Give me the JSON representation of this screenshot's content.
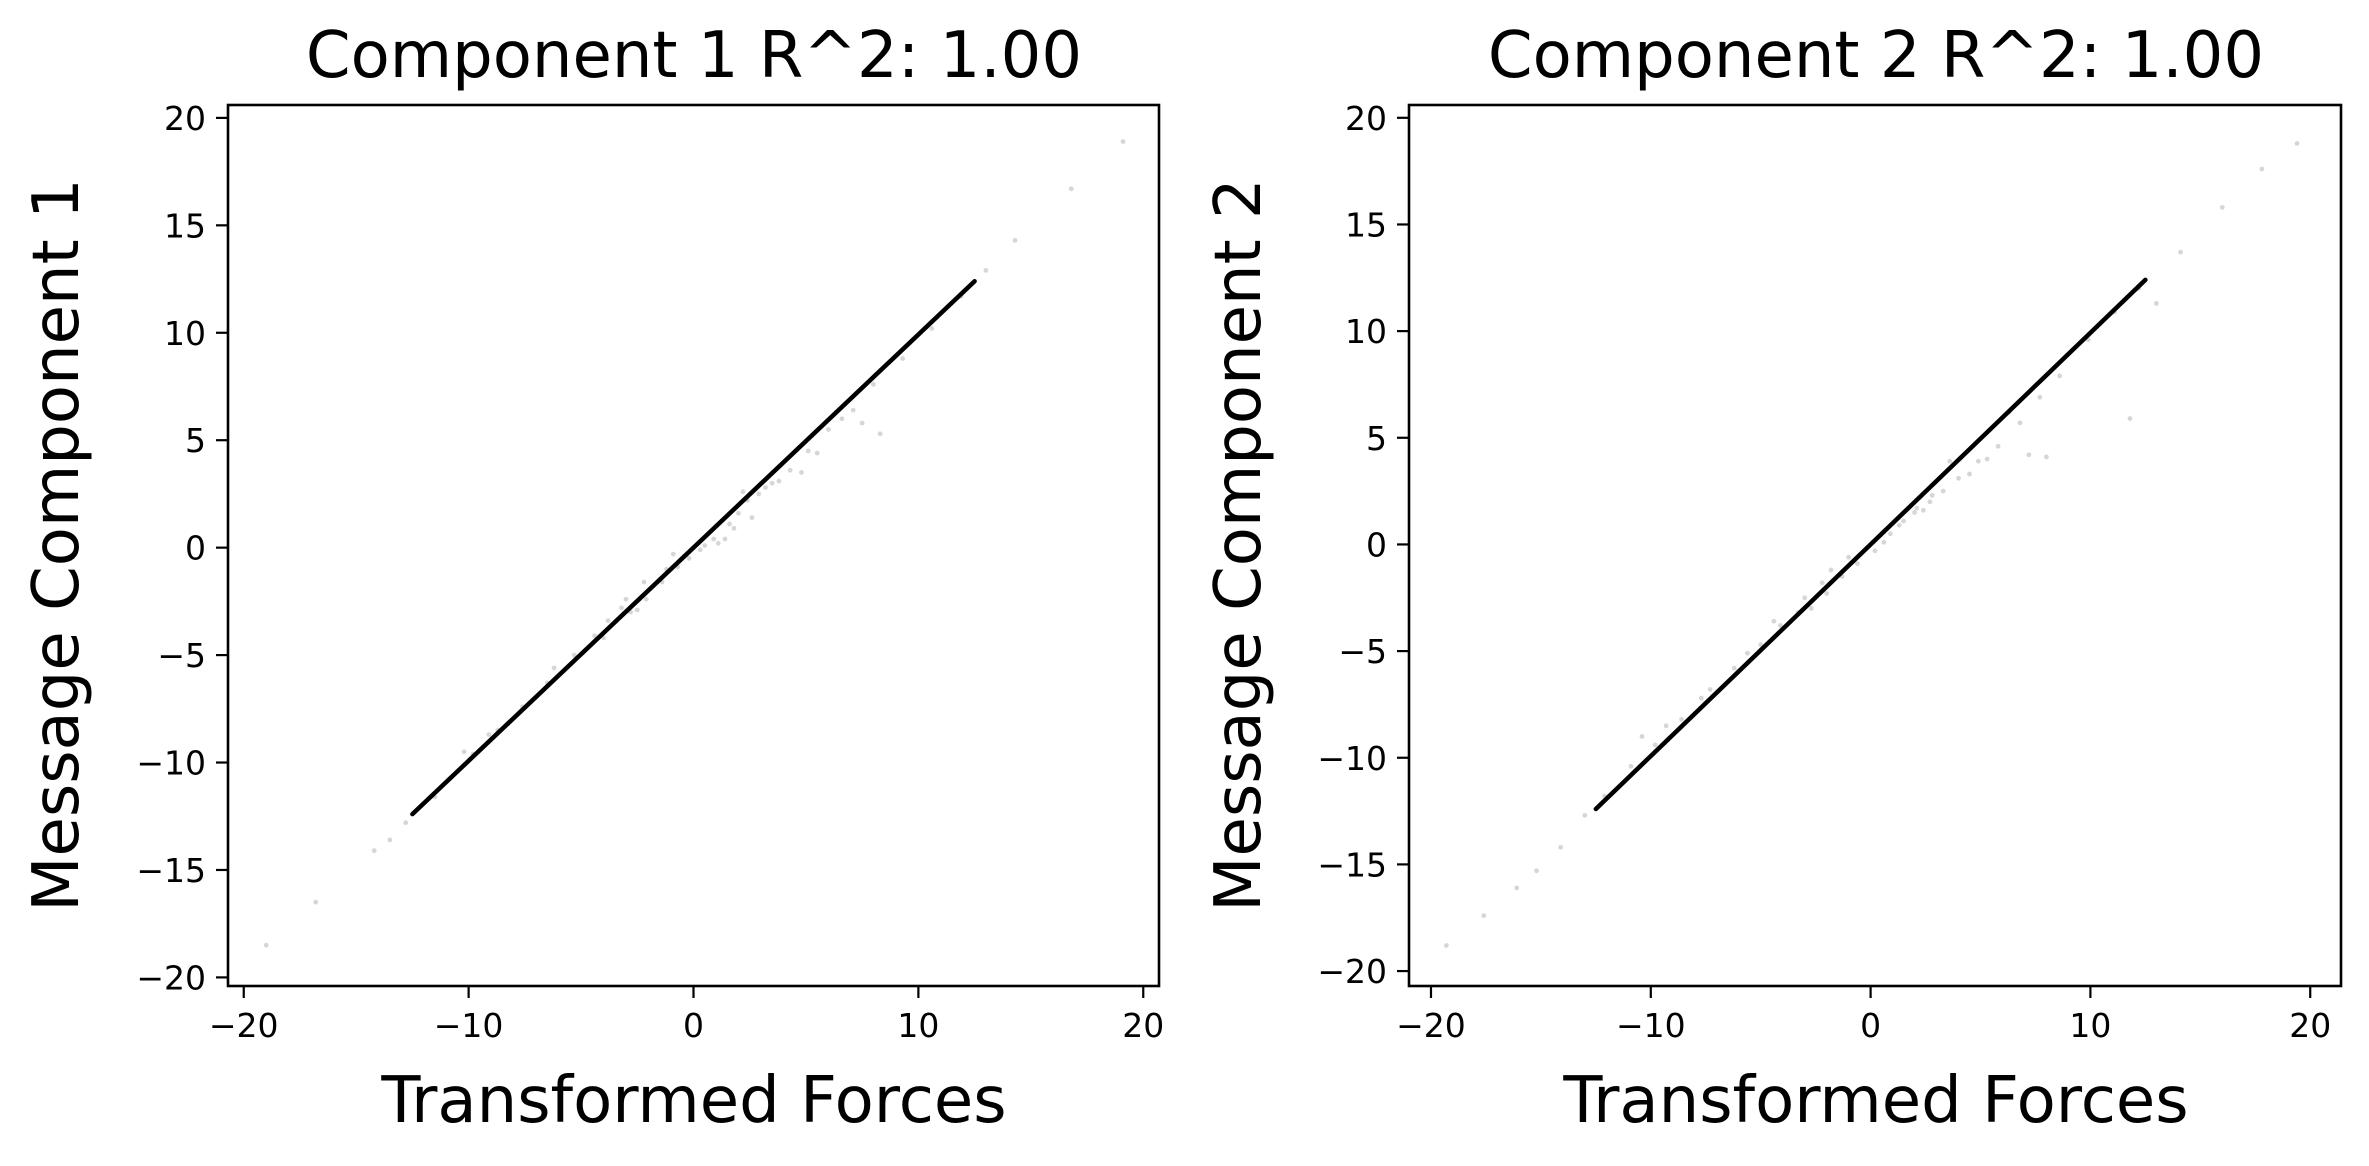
{
  "chart_data": [
    {
      "type": "scatter",
      "title": "Component 1 R^2:  1.00",
      "xlabel": "Transformed Forces",
      "ylabel": "Message Component 1",
      "xlim": [
        -20.7,
        20.7
      ],
      "ylim": [
        -20.4,
        20.6
      ],
      "xticks": [
        -20,
        -10,
        0,
        10,
        20
      ],
      "xtick_labels": [
        "−20",
        "−10",
        "0",
        "10",
        "20"
      ],
      "yticks": [
        -20,
        -15,
        -10,
        -5,
        0,
        5,
        10,
        15,
        20
      ],
      "ytick_labels": [
        "−20",
        "−15",
        "−10",
        "−5",
        "0",
        "5",
        "10",
        "15",
        "20"
      ],
      "grid": false,
      "marker_color": "#000000",
      "trend_segment": {
        "x": [
          -12.5,
          12.5
        ],
        "y": [
          -12.4,
          12.4
        ]
      },
      "series": [
        {
          "x": [
            -19,
            -16.8,
            -14.2,
            -13.5,
            -12.8,
            -11.5,
            -9.8,
            -8.7,
            -7.6,
            -6.5,
            -5.3,
            -4.4,
            -3.8,
            -3.2,
            -2.8,
            -2.1,
            -1.4,
            -0.7,
            -0.2,
            0.3,
            0.9,
            1.6,
            2.0,
            2.4,
            2.9,
            3.5,
            4.3,
            5.1,
            6.0,
            7.1,
            8.0,
            9.3,
            10.6,
            11.9,
            13.0,
            14.3,
            16.8,
            19.1,
            -3.0,
            -2.5,
            -1.2,
            1.1,
            1.8,
            2.6,
            3.2,
            4.8,
            5.5,
            6.6,
            7.5,
            8.3,
            -10.2,
            -9.1,
            -6.2,
            -4.0,
            -2.2,
            -0.9,
            0.5,
            1.4,
            2.2,
            3.8
          ],
          "y": [
            -18.5,
            -16.5,
            -14.1,
            -13.6,
            -12.8,
            -11.6,
            -9.6,
            -8.5,
            -7.4,
            -6.3,
            -5.0,
            -4.1,
            -3.4,
            -2.8,
            -3.0,
            -2.4,
            -1.6,
            -0.9,
            -0.5,
            -0.1,
            0.4,
            1.1,
            1.6,
            2.2,
            2.5,
            3.0,
            3.6,
            4.5,
            5.5,
            6.4,
            7.6,
            8.8,
            10.2,
            11.7,
            12.9,
            14.3,
            16.7,
            18.9,
            -2.4,
            -2.9,
            -1.0,
            0.2,
            0.9,
            1.4,
            2.8,
            3.5,
            4.4,
            6.0,
            5.8,
            5.3,
            -9.5,
            -8.7,
            -5.6,
            -4.2,
            -1.6,
            -0.3,
            0.1,
            0.4,
            2.6,
            3.1
          ]
        }
      ]
    },
    {
      "type": "scatter",
      "title": "Component 2 R^2:  1.00",
      "xlabel": "Transformed Forces",
      "ylabel": "Message Component 2",
      "xlim": [
        -21.0,
        21.4
      ],
      "ylim": [
        -20.7,
        20.6
      ],
      "xticks": [
        -20,
        -10,
        0,
        10,
        20
      ],
      "xtick_labels": [
        "−20",
        "−10",
        "0",
        "10",
        "20"
      ],
      "yticks": [
        -20,
        -15,
        -10,
        -5,
        0,
        5,
        10,
        15,
        20
      ],
      "ytick_labels": [
        "−20",
        "−15",
        "−10",
        "−5",
        "0",
        "5",
        "10",
        "15",
        "20"
      ],
      "grid": false,
      "marker_color": "#000000",
      "trend_segment": {
        "x": [
          -12.5,
          12.5
        ],
        "y": [
          -12.4,
          12.4
        ]
      },
      "series": [
        {
          "x": [
            -19.3,
            -17.6,
            -16.1,
            -15.2,
            -14.1,
            -13.0,
            -12.1,
            -10.9,
            -9.8,
            -8.6,
            -7.3,
            -6.2,
            -5.0,
            -4.1,
            -3.3,
            -2.7,
            -2.0,
            -1.3,
            -0.6,
            0.2,
            0.9,
            1.5,
            2.1,
            2.7,
            3.3,
            4.0,
            4.9,
            5.8,
            6.8,
            7.7,
            8.6,
            9.9,
            11.1,
            12.2,
            13.0,
            14.1,
            16.0,
            17.8,
            19.4,
            -3.0,
            -2.2,
            -1.0,
            1.3,
            2.0,
            2.8,
            3.6,
            4.5,
            5.3,
            6.3,
            7.2,
            8.0,
            11.8,
            -10.4,
            -9.3,
            -7.7,
            -5.6,
            -4.4,
            -1.8,
            0.6,
            2.4
          ],
          "y": [
            -18.8,
            -17.4,
            -16.1,
            -15.3,
            -14.2,
            -12.7,
            -11.8,
            -10.4,
            -9.4,
            -8.2,
            -6.8,
            -5.8,
            -4.7,
            -3.8,
            -3.2,
            -3.0,
            -2.3,
            -1.5,
            -0.9,
            -0.3,
            0.5,
            1.1,
            1.7,
            2.0,
            2.5,
            3.1,
            3.9,
            4.6,
            5.7,
            6.9,
            7.9,
            9.6,
            10.9,
            12.0,
            11.3,
            13.7,
            15.8,
            17.6,
            18.8,
            -2.5,
            -1.8,
            -0.6,
            0.9,
            1.5,
            2.3,
            3.9,
            3.3,
            4.0,
            6.2,
            4.2,
            4.1,
            5.9,
            -9.0,
            -8.5,
            -7.2,
            -5.1,
            -3.6,
            -1.2,
            0.1,
            1.6
          ]
        }
      ]
    }
  ]
}
